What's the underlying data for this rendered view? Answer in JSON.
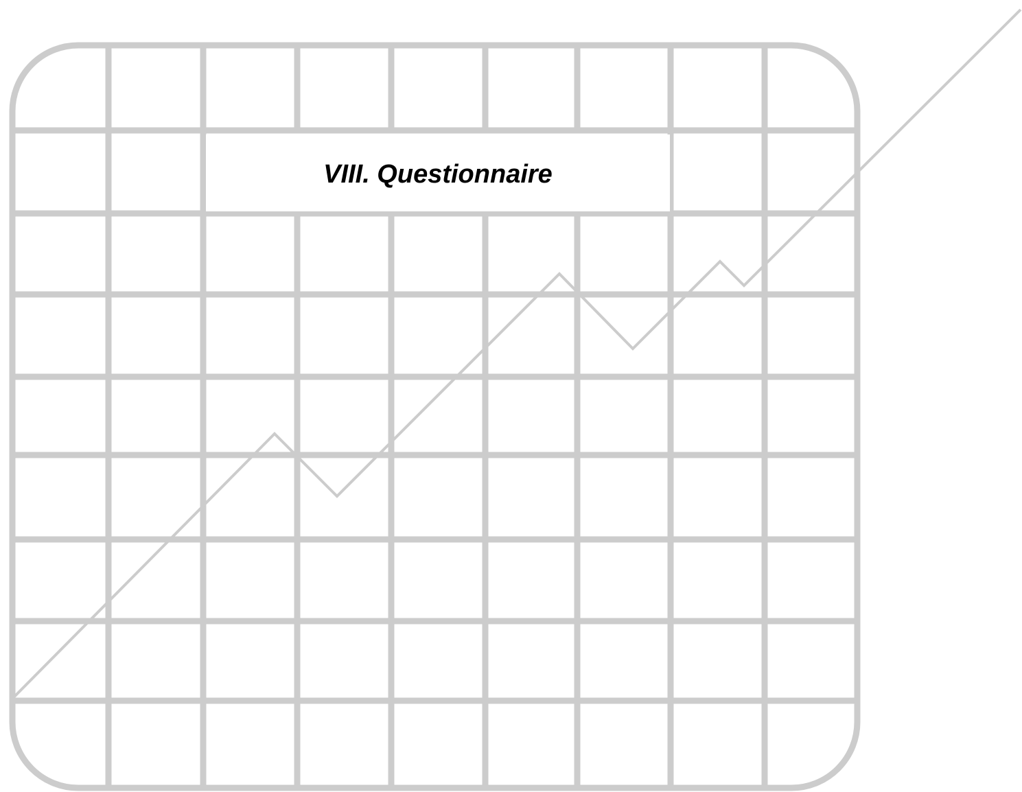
{
  "section": {
    "title": "VIII. Questionnaire"
  },
  "graphic": {
    "icon": "rising-line-chart-grid-icon",
    "grid_color": "#cccccc",
    "line_color": "#cccccc",
    "background_color": "#ffffff",
    "title_color": "#000000",
    "columns": 9,
    "rows": 9
  }
}
